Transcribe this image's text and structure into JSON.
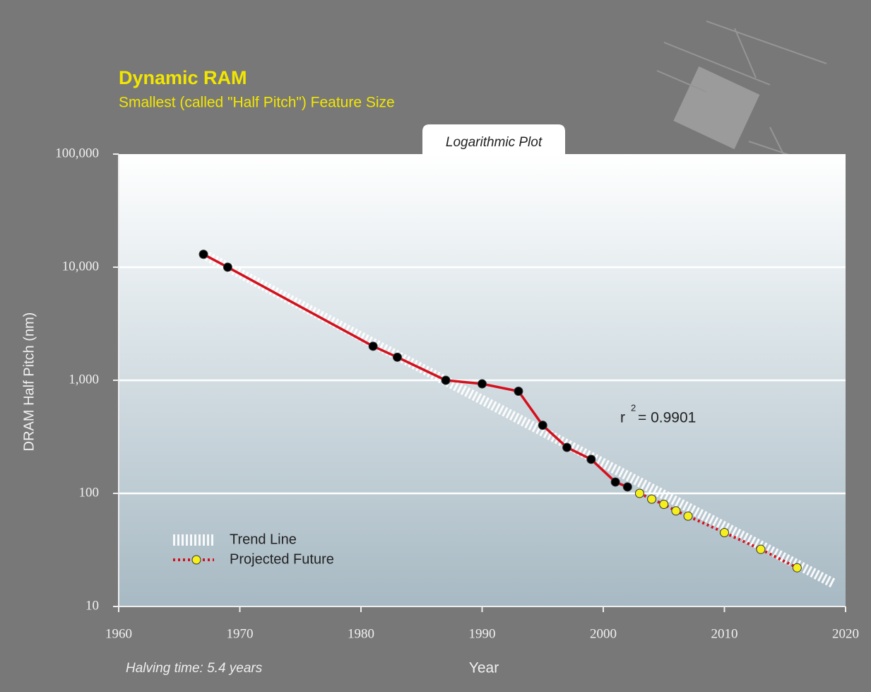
{
  "chart_data": {
    "type": "line",
    "title": "Dynamic RAM",
    "subtitle": "Smallest (called \"Half Pitch\") Feature Size",
    "plot_label": "Logarithmic Plot",
    "xlabel": "Year",
    "ylabel": "DRAM Half Pitch (nm)",
    "footnote": "Halving time: 5.4 years",
    "annotation": {
      "base": "r",
      "exponent": "2",
      "text": "= 0.9901"
    },
    "log_y": true,
    "grid": true,
    "legend": "lower left",
    "xlim": [
      1960,
      2020
    ],
    "xticks": [
      1960,
      1970,
      1980,
      1990,
      2000,
      2010,
      2020
    ],
    "ylim": [
      10,
      100000
    ],
    "yticks": [
      10,
      100,
      {
        "value": 1000,
        "label": "1,000"
      },
      {
        "value": 10000,
        "label": "10,000"
      },
      {
        "value": 100000,
        "label": "100,000"
      }
    ],
    "series": [
      {
        "name": "Trend Line",
        "style": "hatched",
        "color": "#ffffff",
        "x": [
          1967,
          2019
        ],
        "values": [
          13000,
          16
        ]
      },
      {
        "style": "solid",
        "color": "#d4101c",
        "marker_color": "#000000",
        "x": [
          1967,
          1969,
          1981,
          1983,
          1987,
          1990,
          1993,
          1995,
          1997,
          1999,
          2001,
          2002
        ],
        "values": [
          13000,
          10000,
          2000,
          1600,
          1000,
          930,
          800,
          400,
          255,
          200,
          126,
          114
        ]
      },
      {
        "name": "Projected Future",
        "style": "dotted",
        "color": "#d4101c",
        "marker_color": "#f5ef1e",
        "x": [
          2003,
          2004,
          2005,
          2006,
          2007,
          2010,
          2013,
          2016
        ],
        "values": [
          100,
          89,
          80,
          70,
          63,
          45,
          32,
          22
        ]
      }
    ]
  }
}
